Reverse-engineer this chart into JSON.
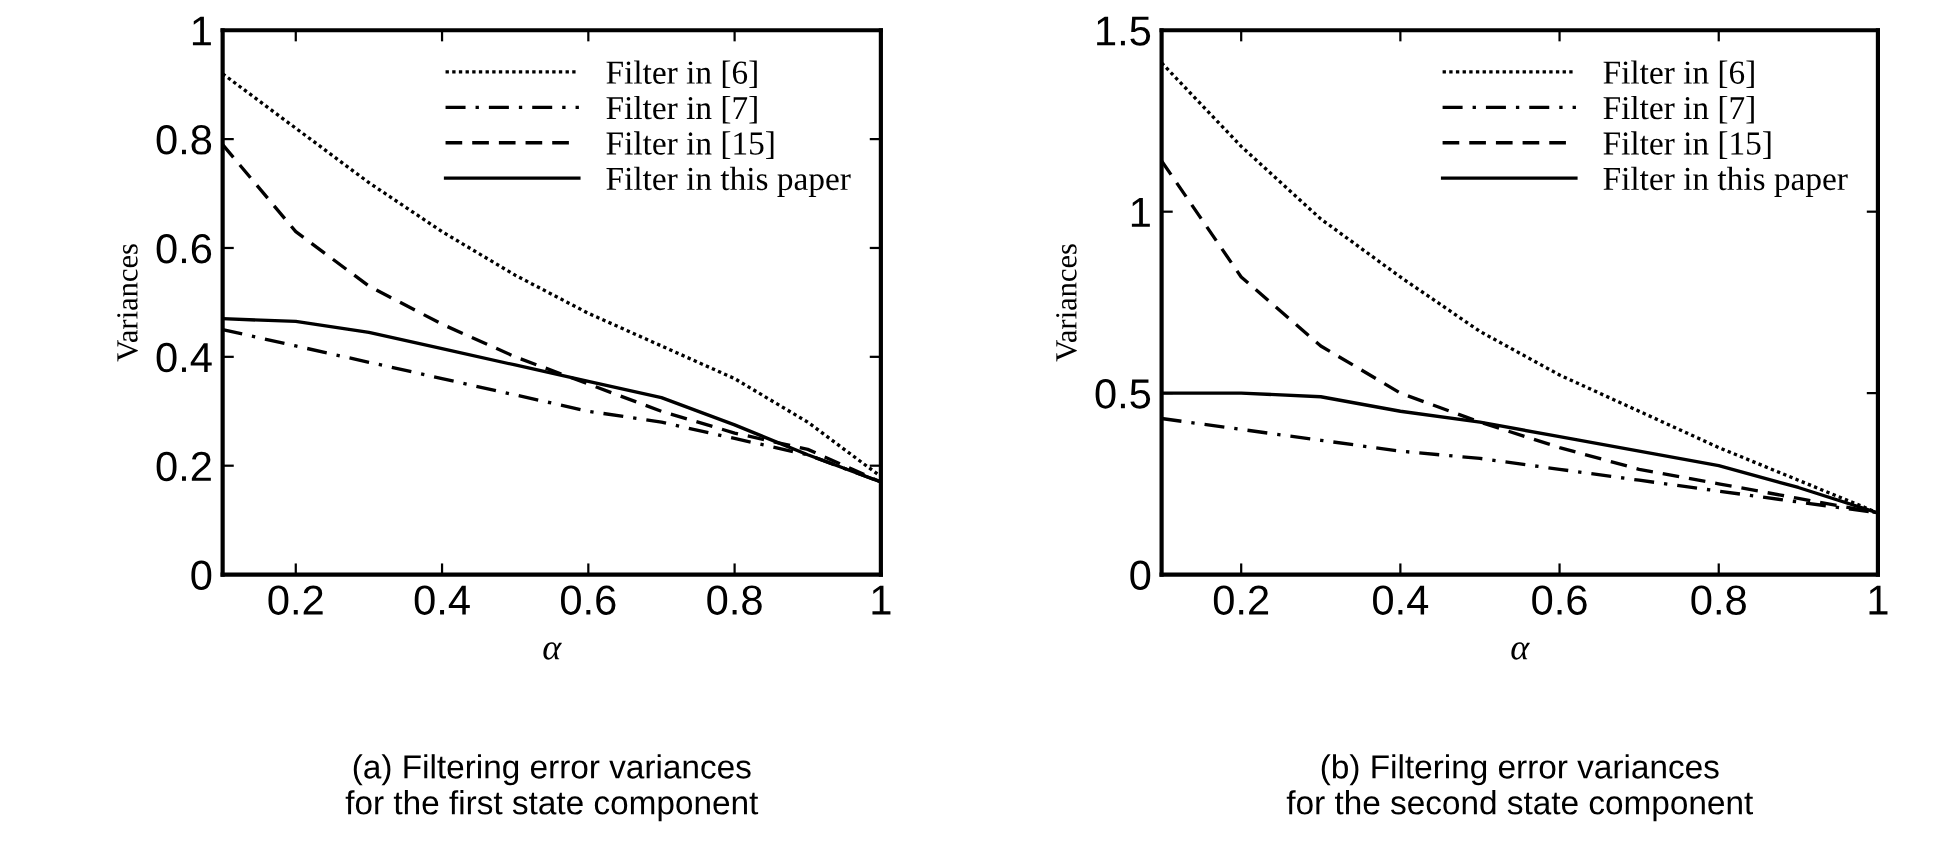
{
  "chart_data": [
    {
      "type": "line",
      "xlabel": "α",
      "ylabel": "Variances",
      "x": [
        0.1,
        0.2,
        0.3,
        0.4,
        0.5,
        0.6,
        0.7,
        0.8,
        0.9,
        1.0
      ],
      "xlim": [
        0.1,
        1
      ],
      "xticks": [
        0.2,
        0.4,
        0.6,
        0.8,
        1
      ],
      "ylim": [
        0,
        1
      ],
      "yticks": [
        0,
        0.2,
        0.4,
        0.6,
        0.8,
        1
      ],
      "legend": "top right",
      "grid": false,
      "series": [
        {
          "name": "Filter in [6]",
          "color": "#000000",
          "line_style": "dotted",
          "values": [
            0.92,
            0.82,
            0.72,
            0.63,
            0.55,
            0.48,
            0.42,
            0.36,
            0.28,
            0.18
          ]
        },
        {
          "name": "Filter in [7]",
          "color": "#000000",
          "line_style": "dashdot",
          "values": [
            0.45,
            0.42,
            0.39,
            0.36,
            0.33,
            0.3,
            0.28,
            0.25,
            0.22,
            0.17
          ]
        },
        {
          "name": "Filter in [15]",
          "color": "#000000",
          "line_style": "dashed",
          "values": [
            0.79,
            0.63,
            0.53,
            0.46,
            0.4,
            0.35,
            0.3,
            0.26,
            0.23,
            0.17
          ]
        },
        {
          "name": "Filter in this paper",
          "color": "#000000",
          "line_style": "solid",
          "values": [
            0.47,
            0.465,
            0.445,
            0.415,
            0.385,
            0.355,
            0.325,
            0.275,
            0.22,
            0.17
          ]
        }
      ],
      "annotations": [
        "(a) Filtering error variances\nfor the first state component"
      ]
    },
    {
      "type": "line",
      "xlabel": "α",
      "ylabel": "Variances",
      "x": [
        0.1,
        0.2,
        0.3,
        0.4,
        0.5,
        0.6,
        0.7,
        0.8,
        0.9,
        1.0
      ],
      "xlim": [
        0.1,
        1
      ],
      "xticks": [
        0.2,
        0.4,
        0.6,
        0.8,
        1
      ],
      "ylim": [
        0,
        1.5
      ],
      "yticks": [
        0,
        0.5,
        1,
        1.5
      ],
      "legend": "top right",
      "grid": false,
      "series": [
        {
          "name": "Filter in [6]",
          "color": "#000000",
          "line_style": "dotted",
          "values": [
            1.41,
            1.18,
            0.98,
            0.82,
            0.67,
            0.55,
            0.45,
            0.35,
            0.26,
            0.17
          ]
        },
        {
          "name": "Filter in [7]",
          "color": "#000000",
          "line_style": "dashdot",
          "values": [
            0.43,
            0.4,
            0.37,
            0.34,
            0.32,
            0.29,
            0.26,
            0.23,
            0.2,
            0.17
          ]
        },
        {
          "name": "Filter in [15]",
          "color": "#000000",
          "line_style": "dashed",
          "values": [
            1.14,
            0.82,
            0.63,
            0.5,
            0.42,
            0.35,
            0.29,
            0.25,
            0.21,
            0.17
          ]
        },
        {
          "name": "Filter in this paper",
          "color": "#000000",
          "line_style": "solid",
          "values": [
            0.5,
            0.5,
            0.49,
            0.45,
            0.42,
            0.38,
            0.34,
            0.3,
            0.24,
            0.17
          ]
        }
      ],
      "annotations": [
        "(b) Filtering error variances\nfor the second state component"
      ]
    }
  ]
}
